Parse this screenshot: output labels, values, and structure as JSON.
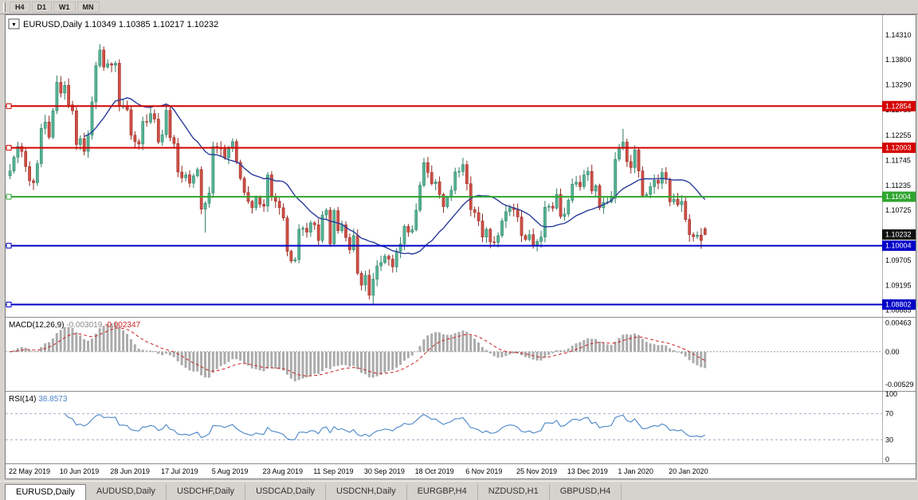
{
  "toolbar": {
    "buttons": [
      "H4",
      "D1",
      "W1",
      "MN"
    ]
  },
  "tabbar": {
    "tabs": [
      {
        "label": "EURUSD,Daily",
        "active": true
      },
      {
        "label": "AUDUSD,Daily",
        "active": false
      },
      {
        "label": "USDCHF,Daily",
        "active": false
      },
      {
        "label": "USDCAD,Daily",
        "active": false
      },
      {
        "label": "USDCNH,Daily",
        "active": false
      },
      {
        "label": "EURGBP,H4",
        "active": false
      },
      {
        "label": "NZDUSD,H1",
        "active": false
      },
      {
        "label": "GBPUSD,H4",
        "active": false
      }
    ]
  },
  "chart_data": {
    "type": "candlestick",
    "title": {
      "symbol": "EURUSD,Daily",
      "ohlc": "1.10349 1.10385 1.10217 1.10232"
    },
    "last_ohlc": {
      "open": 1.10349,
      "high": 1.10385,
      "low": 1.10217,
      "close": 1.10232
    },
    "price_scale": {
      "max": 1.1455,
      "min": 1.0855
    },
    "price_axis_labels": [
      "1.14310",
      "1.13800",
      "1.13290",
      "1.12780",
      "1.12255",
      "1.11745",
      "1.11235",
      "1.10725",
      "1.09705",
      "1.09195",
      "1.08685"
    ],
    "date_labels": [
      "22 May 2019",
      "10 Jun 2019",
      "28 Jun 2019",
      "17 Jul 2019",
      "5 Aug 2019",
      "23 Aug 2019",
      "11 Sep 2019",
      "30 Sep 2019",
      "18 Oct 2019",
      "6 Nov 2019",
      "25 Nov 2019",
      "13 Dec 2019",
      "1 Jan 2020",
      "20 Jan 2020"
    ],
    "label_every": 13,
    "closes": [
      1.1153,
      1.1181,
      1.1203,
      1.1193,
      1.1162,
      1.1133,
      1.1129,
      1.1168,
      1.124,
      1.1253,
      1.1222,
      1.1276,
      1.1334,
      1.1312,
      1.1328,
      1.1288,
      1.1276,
      1.1207,
      1.1219,
      1.1193,
      1.1226,
      1.1294,
      1.1368,
      1.14,
      1.1365,
      1.1372,
      1.1369,
      1.1373,
      1.1285,
      1.1285,
      1.1278,
      1.1226,
      1.1213,
      1.1208,
      1.1254,
      1.1253,
      1.127,
      1.1259,
      1.1212,
      1.1227,
      1.1277,
      1.1221,
      1.1209,
      1.1151,
      1.1139,
      1.1145,
      1.1128,
      1.1143,
      1.1156,
      1.1075,
      1.1087,
      1.1108,
      1.1203,
      1.12,
      1.1198,
      1.118,
      1.1199,
      1.1213,
      1.1171,
      1.1138,
      1.1109,
      1.1091,
      1.1078,
      1.1099,
      1.1085,
      1.1081,
      1.1145,
      1.1101,
      1.1091,
      1.1078,
      1.1057,
      1.0989,
      1.0969,
      1.0972,
      1.1034,
      1.1036,
      1.1028,
      1.1047,
      1.1043,
      1.1011,
      1.1063,
      1.1073,
      1.1004,
      1.1072,
      1.1031,
      1.1043,
      1.1017,
      1.0992,
      1.1021,
      1.0944,
      1.092,
      1.094,
      1.0899,
      1.0932,
      1.0959,
      1.0966,
      1.0979,
      1.0973,
      1.0957,
      1.0989,
      1.1004,
      1.104,
      1.1028,
      1.1033,
      1.1073,
      1.1124,
      1.117,
      1.115,
      1.1127,
      1.1131,
      1.1105,
      1.108,
      1.1099,
      1.1114,
      1.1151,
      1.1152,
      1.1166,
      1.1127,
      1.1074,
      1.1068,
      1.1051,
      1.1018,
      1.1034,
      1.1008,
      1.1007,
      1.1021,
      1.1051,
      1.107,
      1.1078,
      1.1074,
      1.1059,
      1.1021,
      1.1013,
      1.1023,
      1.1001,
      1.1009,
      1.1018,
      1.1079,
      1.1081,
      1.1077,
      1.1105,
      1.106,
      1.1065,
      1.1093,
      1.1126,
      1.113,
      1.1121,
      1.1145,
      1.1152,
      1.1112,
      1.1123,
      1.1078,
      1.1089,
      1.109,
      1.1098,
      1.1177,
      1.1199,
      1.1212,
      1.1172,
      1.116,
      1.1196,
      1.1153,
      1.1103,
      1.1105,
      1.1121,
      1.1134,
      1.1128,
      1.115,
      1.1136,
      1.109,
      1.1095,
      1.1084,
      1.1091,
      1.1054,
      1.1023,
      1.1019,
      1.1022,
      1.1011,
      1.10232
    ],
    "wick_overrides": {
      "12": {
        "high": 1.1348
      },
      "23": {
        "high": 1.1412
      },
      "50": {
        "low": 1.1027
      },
      "93": {
        "low": 1.088
      },
      "157": {
        "high": 1.1239
      },
      "177": {
        "low": 1.0994
      },
      "178": {
        "open": 1.10349,
        "high": 1.10385,
        "low": 1.10217,
        "close": 1.10232
      }
    },
    "hlines": [
      {
        "price": 1.12854,
        "label": "1.12854",
        "color": "#d40000"
      },
      {
        "price": 1.12003,
        "label": "1.12003",
        "color": "#d40000"
      },
      {
        "price": 1.11004,
        "label": "1.11004",
        "color": "#2fa52f"
      },
      {
        "price": 1.10004,
        "label": "1.10004",
        "color": "#0000c8"
      },
      {
        "price": 1.08802,
        "label": "1.08802",
        "color": "#0000c8"
      }
    ],
    "current_price": {
      "value": 1.10232,
      "label": "1.10232"
    },
    "ma": {
      "period": 20
    },
    "macd": {
      "label": "MACD(12,26,9)",
      "value_main": "-0.003019",
      "value_signal": "-0.002347",
      "fast": 12,
      "slow": 26,
      "signal": 9,
      "axis_labels": [
        "0.00463",
        "0.00",
        "-0.00529"
      ],
      "scale": {
        "max": 0.0051,
        "min": -0.0058
      }
    },
    "rsi": {
      "label": "RSI(14)",
      "value": "38.8573",
      "period": 14,
      "levels": [
        70,
        30
      ],
      "axis_labels": [
        "100",
        "70",
        "30",
        "0"
      ]
    },
    "colors": {
      "bull": "#53b394",
      "bull_border": "#2e7d63",
      "bear": "#cf4f45",
      "bear_border": "#93271f",
      "ma": "#2a3b9b",
      "macd_hist": "#ababab",
      "macd_signal": "#cc2222",
      "rsi": "#4a86c8",
      "tag_black": "#111111",
      "grid": "#8c8c8c"
    }
  }
}
